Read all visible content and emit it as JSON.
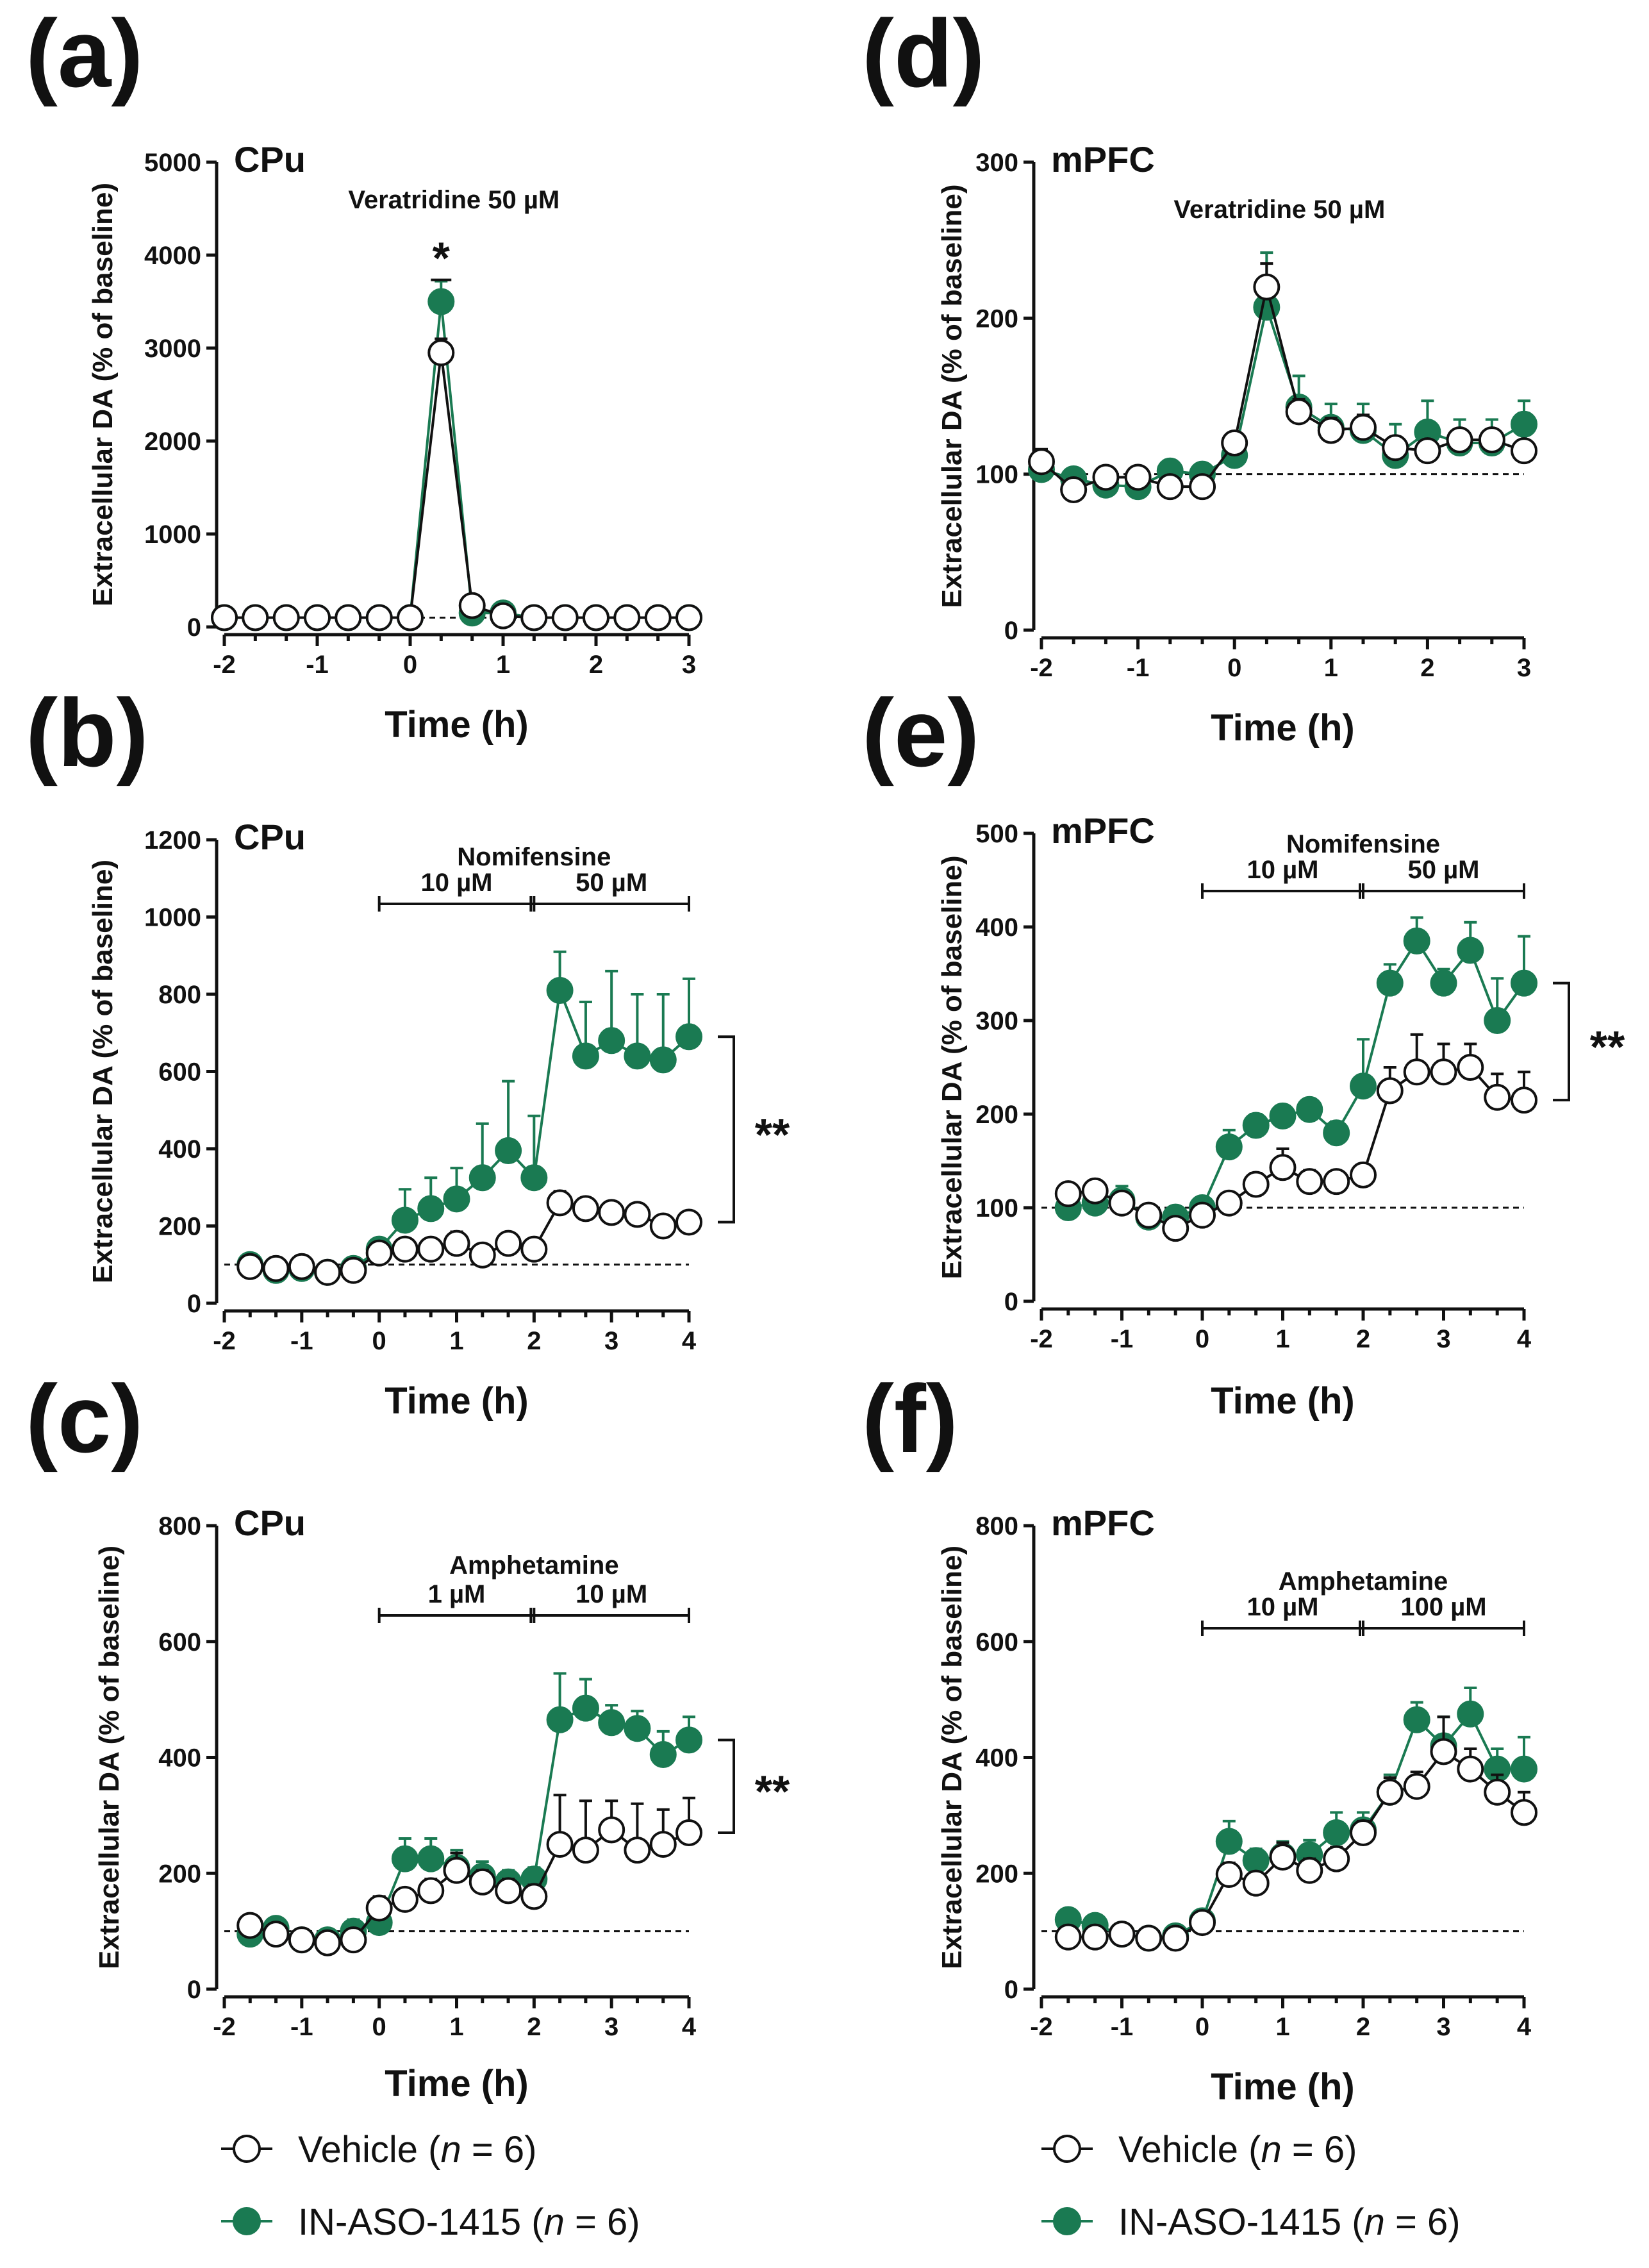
{
  "colors": {
    "vehicle": "#111111",
    "aso": "#1a7a52",
    "background": "#ffffff"
  },
  "common": {
    "x_title": "Time (h)",
    "y_title": "Extracellular DA (% of baseline)",
    "sig_star": "*",
    "sig_double": "**"
  },
  "legend": {
    "vehicle_name": "Vehicle (",
    "vehicle_n": "n",
    "vehicle_tail": " = 6)",
    "aso_name": "IN-ASO-1415 (",
    "aso_n": "n",
    "aso_tail": " = 6)"
  },
  "chart_data": [
    {
      "id": "a",
      "letter": "(a)",
      "region": "CPu",
      "type": "line",
      "title": "Veratridine 50 µM",
      "xlabel": "Time (h)",
      "ylabel": "Extracellular DA (% of baseline)",
      "xlim": [
        -2,
        3
      ],
      "xticks": [
        -2,
        -1,
        0,
        1,
        2,
        3
      ],
      "xtick_labels": [
        "-2",
        "-1",
        "0",
        "1",
        "2",
        "3"
      ],
      "ylim": [
        0,
        5000
      ],
      "yticks": [
        0,
        1000,
        2000,
        3000,
        4000,
        5000
      ],
      "ytick_labels": [
        "0",
        "1000",
        "2000",
        "3000",
        "4000",
        "5000"
      ],
      "baseline": 100,
      "x": [
        -2,
        -1.667,
        -1.333,
        -1,
        -0.667,
        -0.333,
        0,
        0.333,
        0.667,
        1,
        1.333,
        1.667,
        2,
        2.333,
        2.667,
        3
      ],
      "series": [
        {
          "name": "Vehicle",
          "values": [
            100,
            100,
            100,
            100,
            100,
            100,
            100,
            2950,
            230,
            120,
            100,
            100,
            100,
            100,
            100,
            100
          ],
          "errors": [
            10,
            10,
            10,
            10,
            10,
            10,
            10,
            150,
            20,
            20,
            10,
            10,
            10,
            10,
            10,
            10
          ]
        },
        {
          "name": "IN-ASO-1415",
          "values": [
            100,
            100,
            100,
            100,
            100,
            100,
            100,
            3500,
            150,
            150,
            100,
            100,
            100,
            100,
            100,
            100
          ],
          "errors": [
            10,
            10,
            10,
            10,
            10,
            10,
            10,
            220,
            20,
            20,
            10,
            10,
            10,
            10,
            10,
            10
          ]
        }
      ],
      "significance": {
        "type": "star",
        "label": "*",
        "x": 0.333
      }
    },
    {
      "id": "b",
      "letter": "(b)",
      "region": "CPu",
      "type": "line",
      "title": "Nomifensine",
      "segments": [
        {
          "from": 0,
          "to": 2,
          "label": "10 µM"
        },
        {
          "from": 2,
          "to": 4,
          "label": "50 µM"
        }
      ],
      "xlabel": "Time (h)",
      "ylabel": "Extracellular DA (% of baseline)",
      "xlim": [
        -2,
        4
      ],
      "xticks": [
        -2,
        -1,
        0,
        1,
        2,
        3,
        4
      ],
      "xtick_labels": [
        "-2",
        "-1",
        "0",
        "1",
        "2",
        "3",
        "4"
      ],
      "ylim": [
        0,
        1200
      ],
      "yticks": [
        0,
        200,
        400,
        600,
        800,
        1000,
        1200
      ],
      "ytick_labels": [
        "0",
        "200",
        "400",
        "600",
        "800",
        "1000",
        "1200"
      ],
      "baseline": 100,
      "x": [
        -1.667,
        -1.333,
        -1,
        -0.667,
        -0.333,
        0,
        0.333,
        0.667,
        1,
        1.333,
        1.667,
        2,
        2.333,
        2.667,
        3,
        3.333,
        3.667,
        4
      ],
      "series": [
        {
          "name": "Vehicle",
          "values": [
            95,
            90,
            95,
            80,
            85,
            130,
            140,
            140,
            155,
            125,
            155,
            140,
            260,
            245,
            235,
            230,
            200,
            210
          ],
          "errors": [
            10,
            10,
            10,
            10,
            10,
            15,
            15,
            20,
            30,
            15,
            15,
            10,
            30,
            25,
            25,
            20,
            15,
            20
          ]
        },
        {
          "name": "IN-ASO-1415",
          "values": [
            100,
            85,
            90,
            80,
            90,
            140,
            215,
            245,
            270,
            325,
            395,
            325,
            810,
            640,
            680,
            640,
            630,
            690
          ],
          "errors": [
            10,
            10,
            10,
            10,
            10,
            20,
            80,
            80,
            80,
            140,
            180,
            160,
            100,
            140,
            180,
            160,
            170,
            150
          ]
        }
      ],
      "significance": {
        "type": "bracket",
        "label": "**",
        "x": 4
      }
    },
    {
      "id": "c",
      "letter": "(c)",
      "region": "CPu",
      "type": "line",
      "title": "Amphetamine",
      "segments": [
        {
          "from": 0,
          "to": 2,
          "label": "1 µM"
        },
        {
          "from": 2,
          "to": 4,
          "label": "10 µM"
        }
      ],
      "xlabel": "Time (h)",
      "ylabel": "Extracellular DA (% of baseline)",
      "xlim": [
        -2,
        4
      ],
      "xticks": [
        -2,
        -1,
        0,
        1,
        2,
        3,
        4
      ],
      "xtick_labels": [
        "-2",
        "-1",
        "0",
        "1",
        "2",
        "3",
        "4"
      ],
      "ylim": [
        0,
        800
      ],
      "yticks": [
        0,
        200,
        400,
        600,
        800
      ],
      "ytick_labels": [
        "0",
        "200",
        "400",
        "600",
        "800"
      ],
      "baseline": 100,
      "x": [
        -1.667,
        -1.333,
        -1,
        -0.667,
        -0.333,
        0,
        0.333,
        0.667,
        1,
        1.333,
        1.667,
        2,
        2.333,
        2.667,
        3,
        3.333,
        3.667,
        4
      ],
      "series": [
        {
          "name": "Vehicle",
          "values": [
            110,
            95,
            85,
            80,
            85,
            140,
            155,
            170,
            205,
            185,
            170,
            160,
            250,
            240,
            275,
            240,
            250,
            270
          ],
          "errors": [
            15,
            10,
            10,
            10,
            10,
            20,
            15,
            20,
            30,
            20,
            20,
            20,
            85,
            85,
            50,
            80,
            60,
            60
          ]
        },
        {
          "name": "IN-ASO-1415",
          "values": [
            95,
            105,
            85,
            85,
            100,
            115,
            225,
            225,
            210,
            195,
            185,
            190,
            465,
            485,
            460,
            450,
            405,
            430
          ],
          "errors": [
            10,
            10,
            10,
            10,
            20,
            15,
            35,
            35,
            30,
            25,
            20,
            20,
            80,
            50,
            30,
            30,
            40,
            40
          ]
        }
      ],
      "significance": {
        "type": "bracket",
        "label": "**",
        "x": 4
      }
    },
    {
      "id": "d",
      "letter": "(d)",
      "region": "mPFC",
      "type": "line",
      "title": "Veratridine 50 µM",
      "xlabel": "Time (h)",
      "ylabel": "Extracellular DA (% of baseline)",
      "xlim": [
        -2,
        3
      ],
      "xticks": [
        -2,
        -1,
        0,
        1,
        2,
        3
      ],
      "xtick_labels": [
        "-2",
        "-1",
        "0",
        "1",
        "2",
        "3"
      ],
      "ylim": [
        0,
        300
      ],
      "yticks": [
        0,
        100,
        200,
        300
      ],
      "ytick_labels": [
        "0",
        "100",
        "200",
        "300"
      ],
      "baseline": 100,
      "x": [
        -2,
        -1.667,
        -1.333,
        -1,
        -0.667,
        -0.333,
        0,
        0.333,
        0.667,
        1,
        1.333,
        1.667,
        2,
        2.333,
        2.667,
        3
      ],
      "series": [
        {
          "name": "Vehicle",
          "values": [
            108,
            90,
            98,
            98,
            92,
            92,
            120,
            220,
            140,
            128,
            130,
            117,
            115,
            122,
            122,
            115
          ],
          "errors": [
            8,
            5,
            5,
            5,
            5,
            5,
            5,
            15,
            8,
            8,
            8,
            6,
            6,
            6,
            6,
            6
          ]
        },
        {
          "name": "IN-ASO-1415",
          "values": [
            103,
            97,
            93,
            92,
            102,
            100,
            112,
            207,
            143,
            130,
            128,
            112,
            127,
            120,
            120,
            132
          ],
          "errors": [
            6,
            5,
            5,
            5,
            5,
            5,
            5,
            35,
            20,
            15,
            17,
            20,
            20,
            15,
            15,
            15
          ]
        }
      ]
    },
    {
      "id": "e",
      "letter": "(e)",
      "region": "mPFC",
      "type": "line",
      "title": "Nomifensine",
      "segments": [
        {
          "from": 0,
          "to": 2,
          "label": "10 µM"
        },
        {
          "from": 2,
          "to": 4,
          "label": "50 µM"
        }
      ],
      "xlabel": "Time (h)",
      "ylabel": "Extracellular DA (% of baseline)",
      "xlim": [
        -2,
        4
      ],
      "xticks": [
        -2,
        -1,
        0,
        1,
        2,
        3,
        4
      ],
      "xtick_labels": [
        "-2",
        "-1",
        "0",
        "1",
        "2",
        "3",
        "4"
      ],
      "ylim": [
        0,
        500
      ],
      "yticks": [
        0,
        100,
        200,
        300,
        400,
        500
      ],
      "ytick_labels": [
        "0",
        "100",
        "200",
        "300",
        "400",
        "500"
      ],
      "baseline": 100,
      "x": [
        -1.667,
        -1.333,
        -1,
        -0.667,
        -0.333,
        0,
        0.333,
        0.667,
        1,
        1.333,
        1.667,
        2,
        2.333,
        2.667,
        3,
        3.333,
        3.667,
        4
      ],
      "series": [
        {
          "name": "Vehicle",
          "values": [
            115,
            118,
            105,
            92,
            78,
            92,
            105,
            125,
            143,
            128,
            128,
            135,
            225,
            245,
            245,
            250,
            218,
            215
          ],
          "errors": [
            8,
            8,
            6,
            6,
            6,
            10,
            10,
            12,
            20,
            12,
            10,
            10,
            25,
            40,
            30,
            25,
            25,
            30
          ]
        },
        {
          "name": "IN-ASO-1415",
          "values": [
            100,
            105,
            108,
            90,
            90,
            100,
            165,
            188,
            198,
            205,
            180,
            230,
            340,
            385,
            340,
            375,
            300,
            340
          ],
          "errors": [
            6,
            6,
            15,
            6,
            6,
            8,
            18,
            12,
            10,
            10,
            12,
            50,
            20,
            25,
            15,
            30,
            45,
            50
          ]
        }
      ],
      "significance": {
        "type": "bracket",
        "label": "**",
        "x": 4
      }
    },
    {
      "id": "f",
      "letter": "(f)",
      "region": "mPFC",
      "type": "line",
      "title": "Amphetamine",
      "segments": [
        {
          "from": 0,
          "to": 2,
          "label": "10 µM"
        },
        {
          "from": 2,
          "to": 4,
          "label": "100 µM"
        }
      ],
      "xlabel": "Time (h)",
      "ylabel": "Extracellular DA (% of baseline)",
      "xlim": [
        -2,
        4
      ],
      "xticks": [
        -2,
        -1,
        0,
        1,
        2,
        3,
        4
      ],
      "xtick_labels": [
        "-2",
        "-1",
        "0",
        "1",
        "2",
        "3",
        "4"
      ],
      "ylim": [
        0,
        800
      ],
      "yticks": [
        0,
        200,
        400,
        600,
        800
      ],
      "ytick_labels": [
        "0",
        "200",
        "400",
        "600",
        "800"
      ],
      "baseline": 100,
      "x": [
        -1.667,
        -1.333,
        -1,
        -0.667,
        -0.333,
        0,
        0.333,
        0.667,
        1,
        1.333,
        1.667,
        2,
        2.333,
        2.667,
        3,
        3.333,
        3.667,
        4
      ],
      "series": [
        {
          "name": "Vehicle",
          "values": [
            90,
            90,
            95,
            88,
            88,
            115,
            198,
            183,
            228,
            205,
            225,
            270,
            340,
            350,
            410,
            380,
            340,
            305
          ],
          "errors": [
            6,
            6,
            6,
            6,
            6,
            10,
            20,
            15,
            25,
            20,
            20,
            20,
            25,
            25,
            60,
            35,
            30,
            35
          ]
        },
        {
          "name": "IN-ASO-1415",
          "values": [
            120,
            110,
            95,
            88,
            92,
            118,
            255,
            222,
            230,
            232,
            270,
            275,
            340,
            465,
            420,
            475,
            380,
            380
          ],
          "errors": [
            6,
            6,
            6,
            6,
            6,
            10,
            35,
            20,
            25,
            25,
            35,
            30,
            30,
            30,
            50,
            45,
            35,
            55
          ]
        }
      ]
    }
  ]
}
